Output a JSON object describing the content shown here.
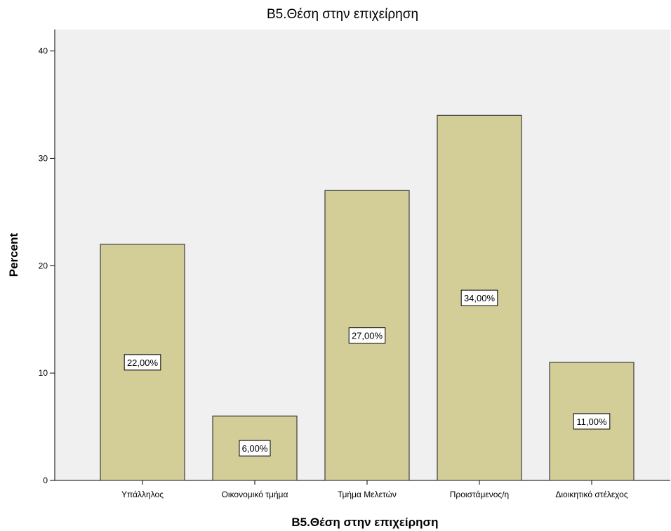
{
  "chart_data": {
    "type": "bar",
    "title": "B5.Θέση στην επιχείρηση",
    "xlabel": "B5.Θέση στην επιχείρηση",
    "ylabel": "Percent",
    "categories": [
      "Υπάλληλος",
      "Οικονομικό τμήμα",
      "Τμήμα Μελετών",
      "Προιστάμενος/η",
      "Διοικητικό στέλεχος"
    ],
    "values": [
      22,
      6,
      27,
      34,
      11
    ],
    "data_labels": [
      "22,00%",
      "6,00%",
      "27,00%",
      "34,00%",
      "11,00%"
    ],
    "ylim": [
      0,
      42
    ],
    "yticks": [
      "0",
      "10",
      "20",
      "30",
      "40"
    ],
    "grid": false,
    "colors": {
      "plot_background": "#f0f0f0",
      "bar_fill": "#d3ce97",
      "bar_stroke": "#3c3c3c",
      "label_box": "#ffffff"
    }
  }
}
